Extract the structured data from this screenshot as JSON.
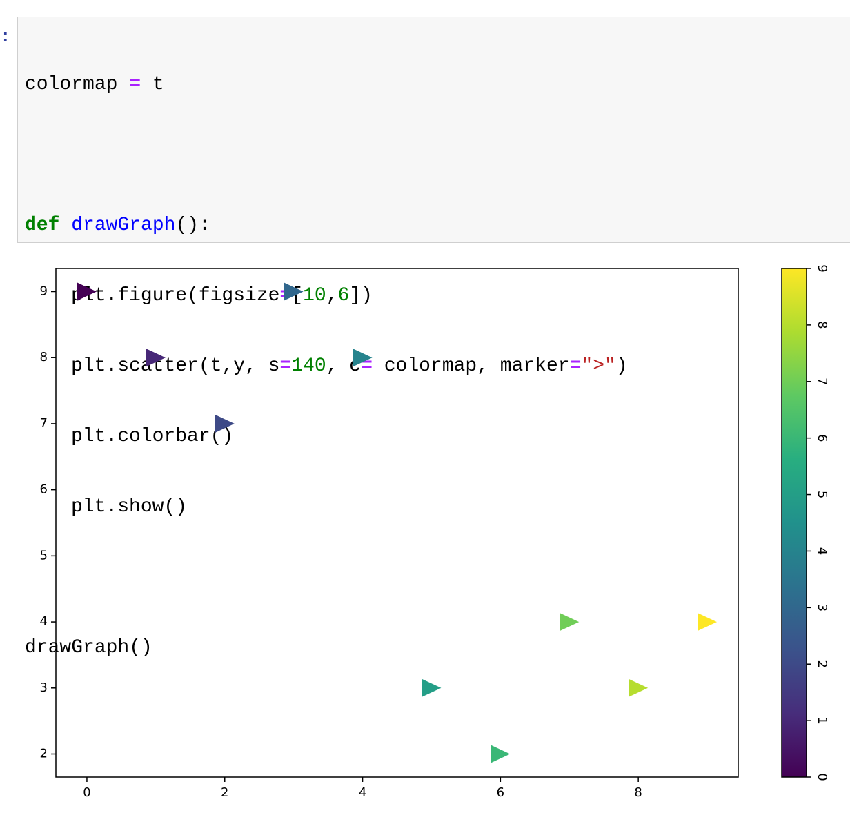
{
  "prompt": ":",
  "code": {
    "lines": [
      [
        "colormap ",
        "=",
        " t"
      ],
      [],
      [
        "def",
        " ",
        "drawGraph",
        "():"
      ],
      [
        "plt.figure(figsize",
        "=",
        "[",
        "10",
        ",",
        "6",
        "])"
      ],
      [
        "plt.scatter(t,y, s",
        "=",
        "140",
        ", c",
        "=",
        " colormap, marker",
        "=",
        "\">\"",
        ")"
      ],
      [
        "plt.colorbar()"
      ],
      [
        "plt.show()"
      ],
      [],
      [
        "drawGraph()"
      ]
    ]
  },
  "chart_data": {
    "type": "scatter",
    "x": [
      0,
      1,
      2,
      3,
      4,
      5,
      6,
      7,
      8,
      9
    ],
    "y": [
      9,
      8,
      7,
      9,
      8,
      3,
      2,
      4,
      3,
      4
    ],
    "c": [
      0,
      1,
      2,
      3,
      4,
      5,
      6,
      7,
      8,
      9
    ],
    "colormap": "viridis",
    "xlim": [
      -0.45,
      9.45
    ],
    "xticks": [
      0,
      2,
      4,
      6,
      8
    ],
    "ylim": [
      1.65,
      9.35
    ],
    "yticks": [
      2,
      3,
      4,
      5,
      6,
      7,
      8,
      9
    ],
    "clim": [
      0,
      9
    ],
    "cticks": [
      0,
      1,
      2,
      3,
      4,
      5,
      6,
      7,
      8,
      9
    ]
  }
}
